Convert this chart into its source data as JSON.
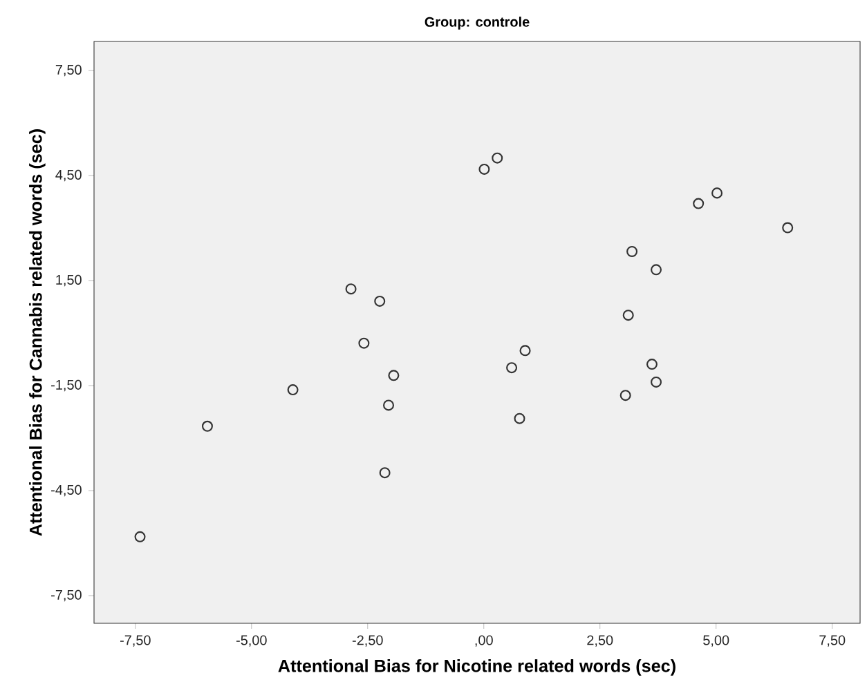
{
  "chart_data": {
    "type": "scatter",
    "title": "Group: controle",
    "xlabel": "Attentional Bias for Nicotine related words (sec)",
    "ylabel": "Attentional Bias for Cannabis related words (sec)",
    "x": [
      0.01,
      0.29,
      4.62,
      5.02,
      6.54,
      3.19,
      3.71,
      -2.86,
      -2.24,
      3.11,
      -2.58,
      0.89,
      0.6,
      3.62,
      3.71,
      -1.94,
      -4.11,
      -2.05,
      3.05,
      0.77,
      -5.95,
      -2.13,
      -7.4
    ],
    "values": [
      4.68,
      5.0,
      3.7,
      4.0,
      3.01,
      2.33,
      1.81,
      1.26,
      0.91,
      0.51,
      -0.29,
      -0.5,
      -0.99,
      -0.89,
      -1.4,
      -1.21,
      -1.62,
      -2.06,
      -1.78,
      -2.44,
      -2.66,
      -3.99,
      -5.82
    ],
    "color": "#333333",
    "marker": "circle",
    "xlim": [
      -8.39,
      8.1
    ],
    "ylim": [
      -8.29,
      8.33
    ],
    "xticks": [
      {
        "value": -7.5,
        "label": "-7,50"
      },
      {
        "value": -5,
        "label": "-5,00"
      },
      {
        "value": -2.5,
        "label": "-2,50"
      },
      {
        "value": 0,
        "label": ",00"
      },
      {
        "value": 2.5,
        "label": "2,50"
      },
      {
        "value": 5,
        "label": "5,00"
      },
      {
        "value": 7.5,
        "label": "7,50"
      }
    ],
    "yticks": [
      {
        "value": -7.5,
        "label": "-7,50"
      },
      {
        "value": -4.5,
        "label": "-4,50"
      },
      {
        "value": -1.5,
        "label": "-1,50"
      },
      {
        "value": 1.5,
        "label": "1,50"
      },
      {
        "value": 4.5,
        "label": "4,50"
      },
      {
        "value": 7.5,
        "label": "7,50"
      }
    ],
    "grid": false
  }
}
